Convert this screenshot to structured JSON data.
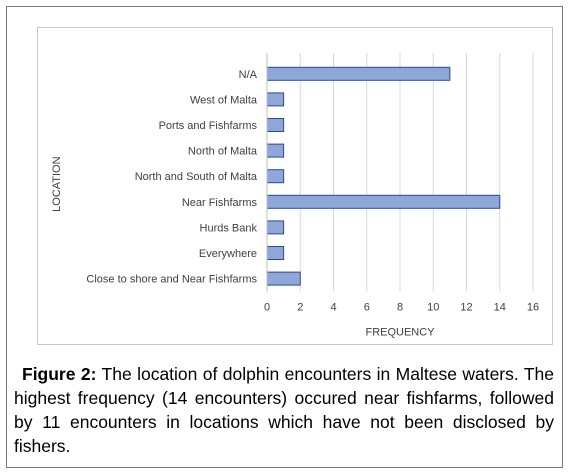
{
  "chart_data": {
    "type": "bar",
    "orientation": "horizontal",
    "categories": [
      "N/A",
      "West of Malta",
      "Ports and Fishfarms",
      "North of Malta",
      "North and South of Malta",
      "Near Fishfarms",
      "Hurds Bank",
      "Everywhere",
      "Close to shore and  Near Fishfarms"
    ],
    "values": [
      11,
      1,
      1,
      1,
      1,
      14,
      1,
      1,
      2
    ],
    "xlabel": "FREQUENCY",
    "ylabel": "LOCATION",
    "xlim": [
      0,
      16
    ],
    "xticks": [
      0,
      2,
      4,
      6,
      8,
      10,
      12,
      14,
      16
    ],
    "grid": true,
    "bar_color": "#8fa6d8",
    "bar_edge_color": "#2f4b8e"
  },
  "caption": {
    "label": "Figure 2:",
    "text": " The location of dolphin encounters in Maltese waters. The highest frequency (14 encounters) occured near fishfarms, followed by 11 encounters in locations which have not been disclosed by fishers."
  }
}
